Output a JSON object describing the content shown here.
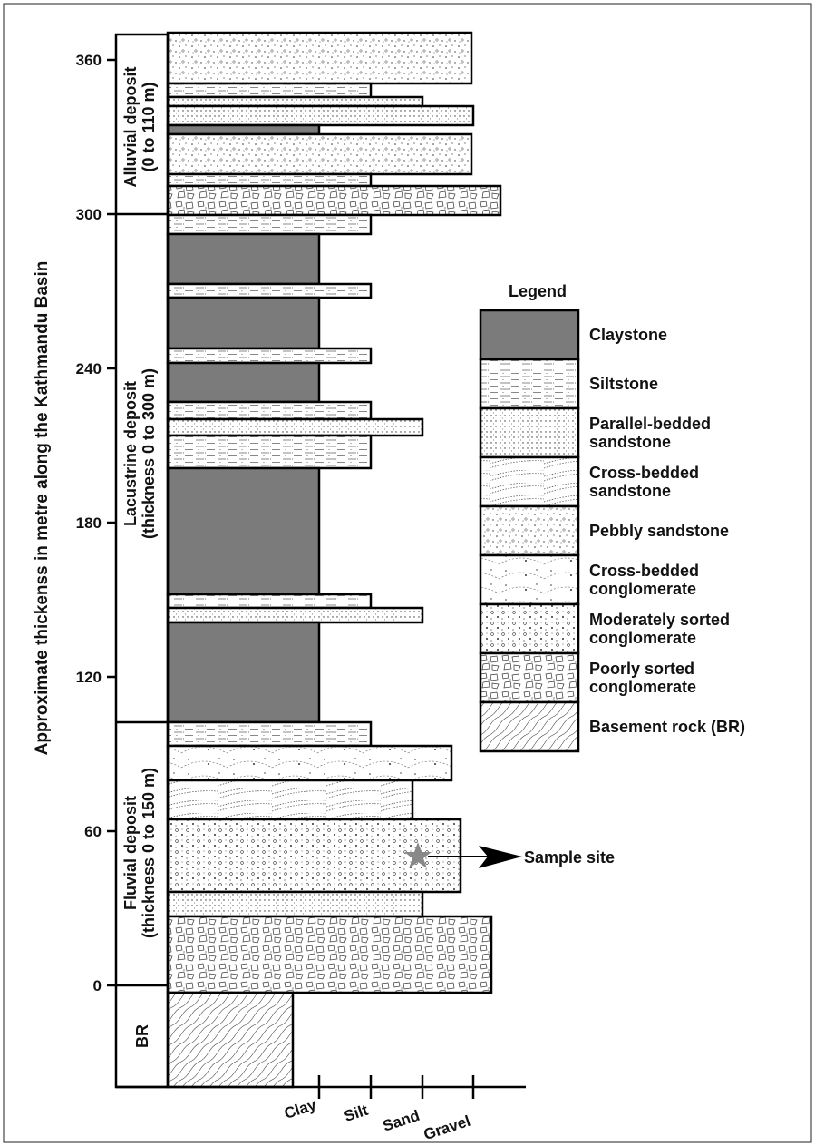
{
  "axis": {
    "title": "Approximate thickenss  in metre along the Kathmandu Basin",
    "ticks": [
      0,
      60,
      120,
      180,
      240,
      300,
      360
    ]
  },
  "units": [
    {
      "label": "Alluvial deposit",
      "sub": "(0 to 110 m)"
    },
    {
      "label": "Lacustrine deposit",
      "sub": "(thickness 0 to 300 m)"
    },
    {
      "label": "Fluvial deposit",
      "sub": "(thickness 0 to 150 m)"
    },
    {
      "label": "BR"
    }
  ],
  "grain_sizes": [
    "Clay",
    "Silt",
    "Sand",
    "Gravel"
  ],
  "legend": {
    "title": "Legend",
    "items": [
      [
        "Claystone"
      ],
      [
        "Siltstone"
      ],
      [
        "Parallel-bedded",
        "sandstone"
      ],
      [
        "Cross-bedded",
        "sandstone"
      ],
      [
        "Pebbly sandstone"
      ],
      [
        "Cross-bedded",
        "conglomerate"
      ],
      [
        "Moderately sorted",
        "conglomerate"
      ],
      [
        "Poorly sorted",
        "conglomerate"
      ],
      [
        "Basement rock (BR)"
      ]
    ]
  },
  "annotation": "Sample site"
}
